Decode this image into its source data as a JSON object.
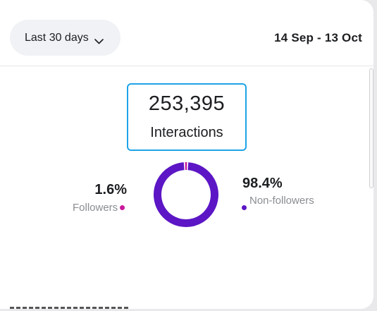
{
  "header": {
    "range_label": "Last 30 days",
    "date_range": "14 Sep - 13 Oct"
  },
  "summary": {
    "value": "253,395",
    "label": "Interactions"
  },
  "breakdown": {
    "followers": {
      "percent": "1.6%",
      "label": "Followers",
      "share": 0.016,
      "color": "#c9189c"
    },
    "non_followers": {
      "percent": "98.4%",
      "label": "Non-followers",
      "share": 0.984,
      "color": "#5c16c5"
    }
  },
  "chart_data": {
    "type": "pie",
    "categories": [
      "Followers",
      "Non-followers"
    ],
    "values": [
      1.6,
      98.4
    ],
    "title": "",
    "colors": [
      "#c9189c",
      "#5c16c5"
    ]
  }
}
